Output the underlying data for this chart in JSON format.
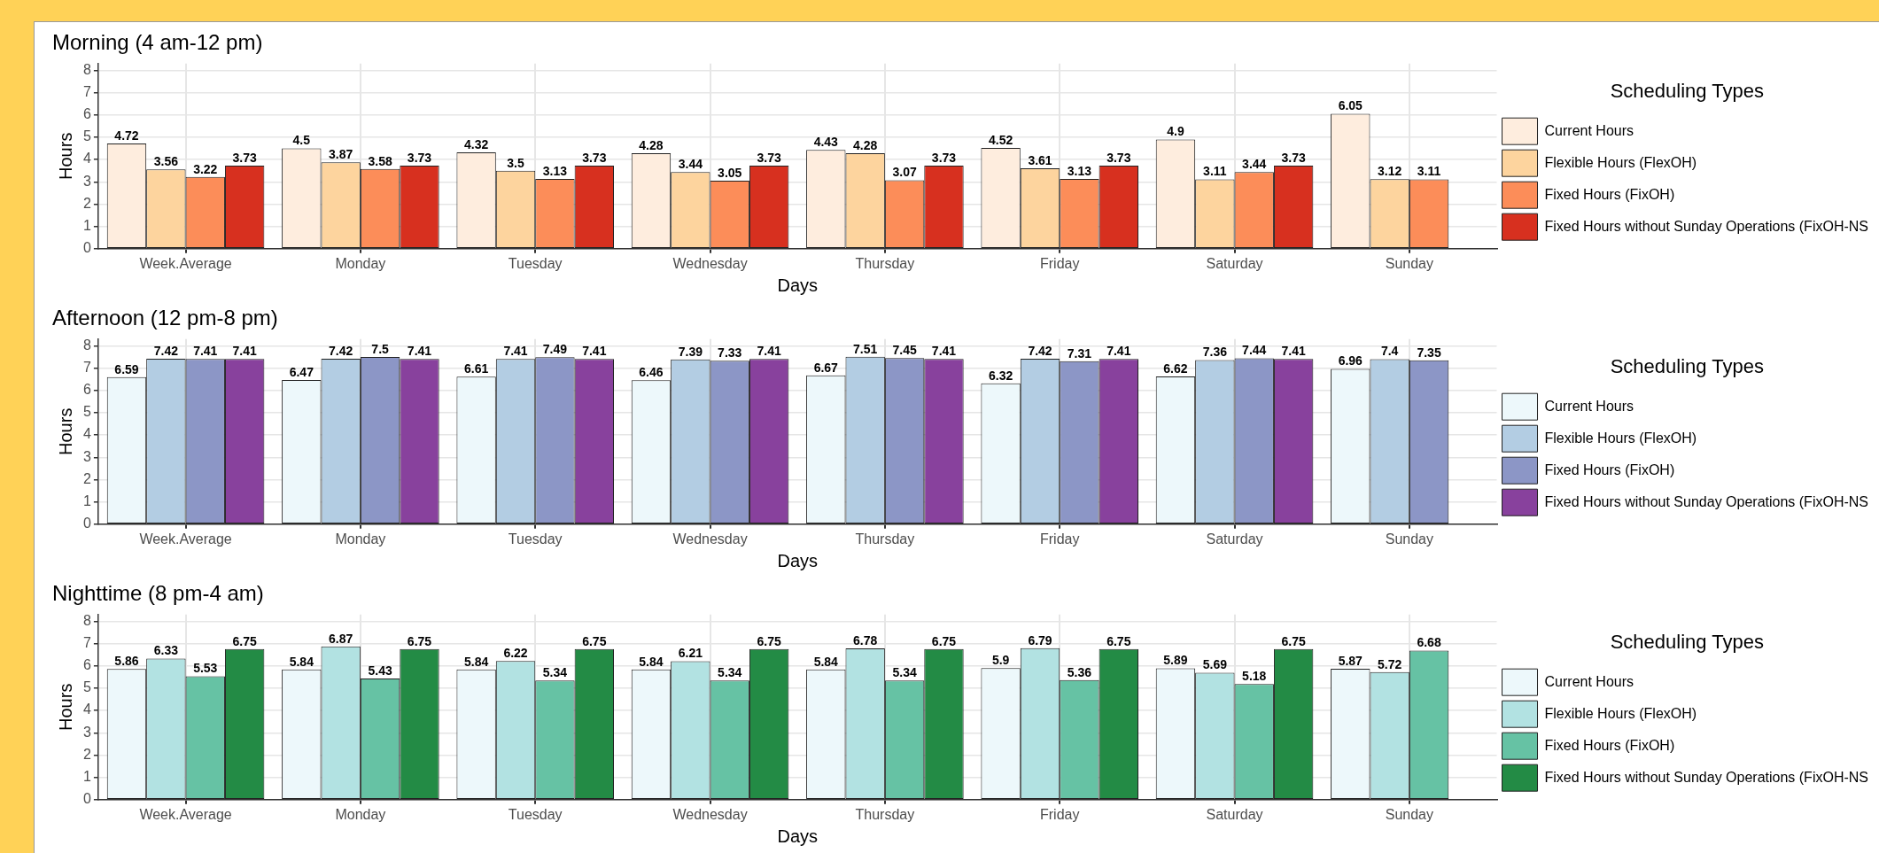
{
  "chart_data": [
    {
      "type": "bar",
      "title": "Morning (4 am-12 pm)",
      "xlabel": "Days",
      "ylabel": "Hours",
      "legend_title": "Scheduling Types",
      "legend": "right",
      "grid": true,
      "data_labels": true,
      "categories": [
        "Week.Average",
        "Monday",
        "Tuesday",
        "Wednesday",
        "Thursday",
        "Friday",
        "Saturday",
        "Sunday"
      ],
      "ylim": [
        0,
        8.3
      ],
      "yticks": [
        0,
        1,
        2,
        3,
        4,
        5,
        6,
        7,
        8
      ],
      "series": [
        {
          "name": "Current Hours",
          "color": "#feedde",
          "values": [
            4.72,
            4.5,
            4.32,
            4.28,
            4.43,
            4.52,
            4.9,
            6.05
          ]
        },
        {
          "name": "Flexible Hours (FlexOH)",
          "color": "#fdd49e",
          "values": [
            3.56,
            3.87,
            3.5,
            3.44,
            4.28,
            3.61,
            3.11,
            3.12
          ]
        },
        {
          "name": "Fixed Hours (FixOH)",
          "color": "#fc8d59",
          "values": [
            3.22,
            3.58,
            3.13,
            3.05,
            3.07,
            3.13,
            3.44,
            3.11
          ]
        },
        {
          "name": "Fixed Hours without Sunday Operations (FixOH-NS",
          "color": "#d7301f",
          "values": [
            3.73,
            3.73,
            3.73,
            3.73,
            3.73,
            3.73,
            3.73,
            null
          ]
        }
      ]
    },
    {
      "type": "bar",
      "title": "Afternoon (12 pm-8 pm)",
      "xlabel": "Days",
      "ylabel": "Hours",
      "legend_title": "Scheduling Types",
      "legend": "right",
      "grid": true,
      "data_labels": true,
      "categories": [
        "Week.Average",
        "Monday",
        "Tuesday",
        "Wednesday",
        "Thursday",
        "Friday",
        "Saturday",
        "Sunday"
      ],
      "ylim": [
        0,
        8.3
      ],
      "yticks": [
        0,
        1,
        2,
        3,
        4,
        5,
        6,
        7,
        8
      ],
      "series": [
        {
          "name": "Current Hours",
          "color": "#edf8fb",
          "values": [
            6.59,
            6.47,
            6.61,
            6.46,
            6.67,
            6.32,
            6.62,
            6.96
          ]
        },
        {
          "name": "Flexible Hours (FlexOH)",
          "color": "#b3cde3",
          "values": [
            7.42,
            7.42,
            7.41,
            7.39,
            7.51,
            7.42,
            7.36,
            7.4
          ]
        },
        {
          "name": "Fixed Hours (FixOH)",
          "color": "#8c96c6",
          "values": [
            7.41,
            7.5,
            7.49,
            7.33,
            7.45,
            7.31,
            7.44,
            7.35
          ]
        },
        {
          "name": "Fixed Hours without Sunday Operations (FixOH-NS",
          "color": "#88419d",
          "values": [
            7.41,
            7.41,
            7.41,
            7.41,
            7.41,
            7.41,
            7.41,
            null
          ]
        }
      ]
    },
    {
      "type": "bar",
      "title": "Nighttime (8 pm-4 am)",
      "xlabel": "Days",
      "ylabel": "Hours",
      "legend_title": "Scheduling Types",
      "legend": "right",
      "grid": true,
      "data_labels": true,
      "categories": [
        "Week.Average",
        "Monday",
        "Tuesday",
        "Wednesday",
        "Thursday",
        "Friday",
        "Saturday",
        "Sunday"
      ],
      "ylim": [
        0,
        8.3
      ],
      "yticks": [
        0,
        1,
        2,
        3,
        4,
        5,
        6,
        7,
        8
      ],
      "series": [
        {
          "name": "Current Hours",
          "color": "#edf8fb",
          "values": [
            5.86,
            5.84,
            5.84,
            5.84,
            5.84,
            5.9,
            5.89,
            5.87
          ]
        },
        {
          "name": "Flexible Hours (FlexOH)",
          "color": "#b2e2e2",
          "values": [
            6.33,
            6.87,
            6.22,
            6.21,
            6.78,
            6.79,
            5.69,
            5.72
          ]
        },
        {
          "name": "Fixed Hours (FixOH)",
          "color": "#66c2a4",
          "values": [
            5.53,
            5.43,
            5.34,
            5.34,
            5.34,
            5.36,
            5.18,
            6.68
          ]
        },
        {
          "name": "Fixed Hours without Sunday Operations (FixOH-NS",
          "color": "#238b45",
          "values": [
            6.75,
            6.75,
            6.75,
            6.75,
            6.75,
            6.75,
            6.75,
            null
          ]
        }
      ]
    }
  ]
}
